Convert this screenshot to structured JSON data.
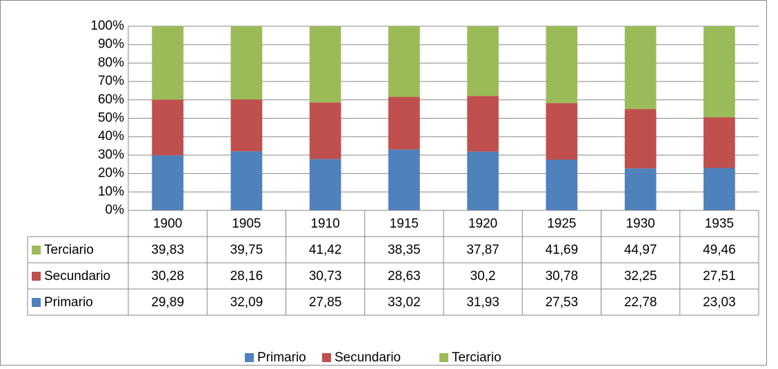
{
  "chart_data": {
    "type": "stacked_bar",
    "categories": [
      "1900",
      "1905",
      "1910",
      "1915",
      "1920",
      "1925",
      "1930",
      "1935"
    ],
    "series": [
      {
        "name": "Primario",
        "color": "#4f81bd",
        "values": [
          29.89,
          32.09,
          27.85,
          33.02,
          31.93,
          27.53,
          22.78,
          23.03
        ],
        "value_labels": [
          "29,89",
          "32,09",
          "27,85",
          "33,02",
          "31,93",
          "27,53",
          "22,78",
          "23,03"
        ]
      },
      {
        "name": "Secundario",
        "color": "#c0504d",
        "values": [
          30.28,
          28.16,
          30.73,
          28.63,
          30.2,
          30.78,
          32.25,
          27.51
        ],
        "value_labels": [
          "30,28",
          "28,16",
          "30,73",
          "28,63",
          "30,2",
          "30,78",
          "32,25",
          "27,51"
        ]
      },
      {
        "name": "Terciario",
        "color": "#9bbb59",
        "values": [
          39.83,
          39.75,
          41.42,
          38.35,
          37.87,
          41.69,
          44.97,
          49.46
        ],
        "value_labels": [
          "39,83",
          "39,75",
          "41,42",
          "38,35",
          "37,87",
          "41,69",
          "44,97",
          "49,46"
        ]
      }
    ],
    "ylim": [
      0,
      100
    ],
    "yticks": [
      {
        "value": 0,
        "label": "0%"
      },
      {
        "value": 10,
        "label": "10%"
      },
      {
        "value": 20,
        "label": "20%"
      },
      {
        "value": 30,
        "label": "30%"
      },
      {
        "value": 40,
        "label": "40%"
      },
      {
        "value": 50,
        "label": "50%"
      },
      {
        "value": 60,
        "label": "60%"
      },
      {
        "value": 70,
        "label": "70%"
      },
      {
        "value": 80,
        "label": "80%"
      },
      {
        "value": 90,
        "label": "90%"
      },
      {
        "value": 100,
        "label": "100%"
      }
    ],
    "grid": true,
    "legend": "bottom"
  }
}
